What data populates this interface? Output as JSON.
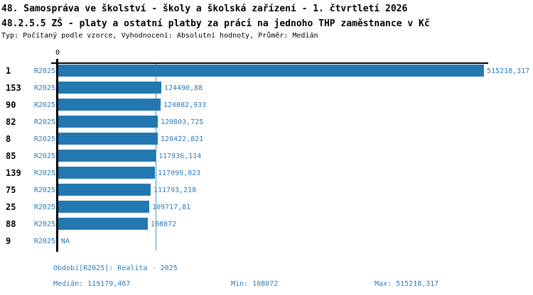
{
  "header": {
    "title_line1": "48. Samospráva ve školství - školy a školská zařízení - 1. čtvrtletí 2026",
    "title_line2": "48.2.5.5 ZŠ - platy a ostatní platby za práci na jednoho THP zaměstnance v Kč",
    "meta": "Typ: Počítaný podle vzorce, Vyhodnocení: Absolutní hodnoty, Průměr: Medián"
  },
  "chart_data": {
    "type": "bar",
    "orientation": "horizontal",
    "title": "48.2.5.5 ZŠ - platy a ostatní platby za práci na jednoho THP zaměstnance v Kč",
    "axis_zero_label": "0",
    "series_label": "R2025",
    "categories": [
      "1",
      "153",
      "90",
      "82",
      "8",
      "85",
      "139",
      "75",
      "25",
      "88",
      "9"
    ],
    "values": [
      515218.317,
      124490.88,
      124082.933,
      120803.725,
      120422.821,
      117936.114,
      117099.823,
      111793.218,
      109717.81,
      108072,
      null
    ],
    "value_labels": [
      "515218,317",
      "124490,88",
      "124082,933",
      "120803,725",
      "120422,821",
      "117936,114",
      "117099,823",
      "111793,218",
      "109717,81",
      "108072",
      "NA"
    ],
    "na_label": "NA",
    "xlim": [
      0,
      515218.317
    ],
    "median_value": 119179.467,
    "grid": false,
    "legend": "none",
    "colors": {
      "bar": "#2478b2",
      "label_text": "#2b7bb9",
      "median_line": "#4a90c6",
      "axis": "#000000"
    }
  },
  "footer": {
    "period": "Období[R2025]: Realita - 2025",
    "median": "Medián: 119179,467",
    "min": "Min: 108072",
    "max": "Max: 515218,317"
  }
}
